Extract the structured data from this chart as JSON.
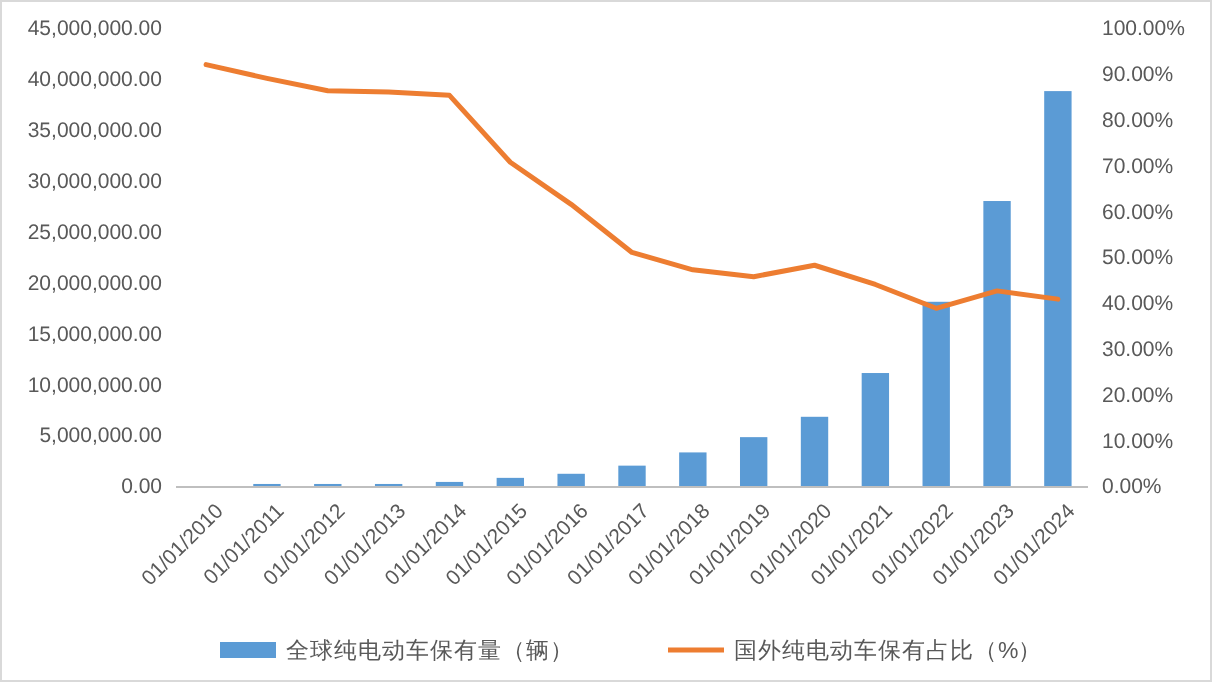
{
  "chart_data": {
    "type": "bar",
    "categories": [
      "01/01/2010",
      "01/01/2011",
      "01/01/2012",
      "01/01/2013",
      "01/01/2014",
      "01/01/2015",
      "01/01/2016",
      "01/01/2017",
      "01/01/2018",
      "01/01/2019",
      "01/01/2020",
      "01/01/2021",
      "01/01/2022",
      "01/01/2023",
      "01/01/2024"
    ],
    "series": [
      {
        "name": "全球纯电动车保有量（辆）",
        "color": "#5b9bd5",
        "values": [
          0,
          200000,
          200000,
          200000,
          400000,
          800000,
          1200000,
          2000000,
          3300000,
          4800000,
          6800000,
          11100000,
          18100000,
          28000000,
          38800000
        ]
      },
      {
        "name": "国外纯电动车保有占比（%）",
        "type": "line",
        "axis": "y2",
        "color": "#ed7d31",
        "values": [
          92,
          89,
          86.3,
          86,
          85.3,
          70.7,
          61.5,
          51,
          47.2,
          45.7,
          48.2,
          44,
          38.8,
          42.6,
          40.8
        ]
      }
    ],
    "ylim": [
      0,
      45000000
    ],
    "yticks": [
      {
        "value": 0,
        "label": "0.00"
      },
      {
        "value": 5000000,
        "label": "5,000,000.00"
      },
      {
        "value": 10000000,
        "label": "10,000,000.00"
      },
      {
        "value": 15000000,
        "label": "15,000,000.00"
      },
      {
        "value": 20000000,
        "label": "20,000,000.00"
      },
      {
        "value": 25000000,
        "label": "25,000,000.00"
      },
      {
        "value": 30000000,
        "label": "30,000,000.00"
      },
      {
        "value": 35000000,
        "label": "35,000,000.00"
      },
      {
        "value": 40000000,
        "label": "40,000,000.00"
      },
      {
        "value": 45000000,
        "label": "45,000,000.00"
      }
    ],
    "y2lim": [
      0,
      100
    ],
    "y2ticks": [
      {
        "value": 0,
        "label": "0.00%"
      },
      {
        "value": 10,
        "label": "10.00%"
      },
      {
        "value": 20,
        "label": "20.00%"
      },
      {
        "value": 30,
        "label": "30.00%"
      },
      {
        "value": 40,
        "label": "40.00%"
      },
      {
        "value": 50,
        "label": "50.00%"
      },
      {
        "value": 60,
        "label": "60.00%"
      },
      {
        "value": 70,
        "label": "70.00%"
      },
      {
        "value": 80,
        "label": "80.00%"
      },
      {
        "value": 90,
        "label": "90.00%"
      },
      {
        "value": 100,
        "label": "100.00%"
      }
    ],
    "legend": "bottom",
    "grid": false,
    "marker": "none",
    "line_style": "solid"
  }
}
